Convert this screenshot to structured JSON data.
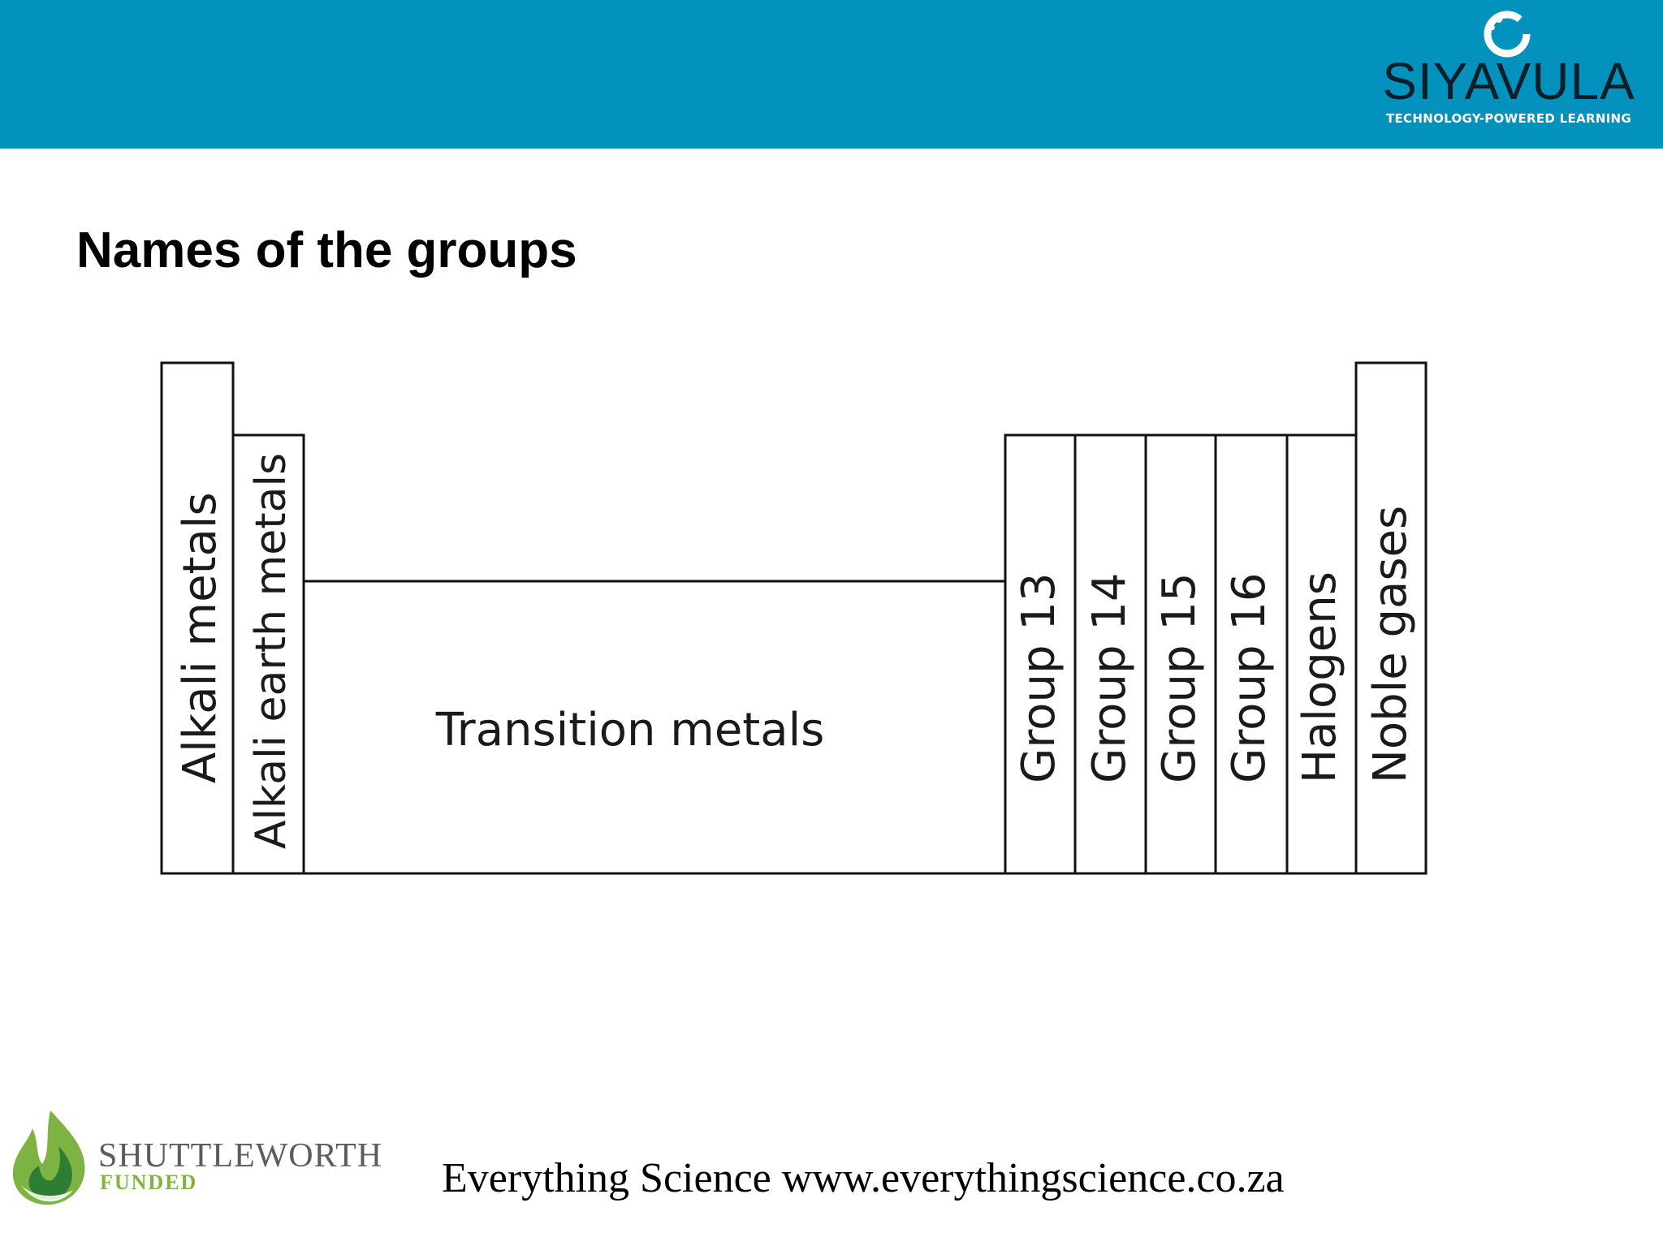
{
  "header": {
    "logo_name": "SIYAVULA",
    "logo_tagline": "TECHNOLOGY-POWERED LEARNING",
    "color": "#0391bd"
  },
  "slide": {
    "title": "Names of the groups"
  },
  "diagram": {
    "groups": [
      "Alkali metals",
      "Alkali earth metals",
      "Transition metals",
      "Group 13",
      "Group 14",
      "Group 15",
      "Group 16",
      "Halogens",
      "Noble gases"
    ]
  },
  "footer": {
    "sponsor_name": "SHUTTLEWORTH",
    "sponsor_sub": "FUNDED",
    "text": "Everything Science www.everythingscience.co.za"
  }
}
